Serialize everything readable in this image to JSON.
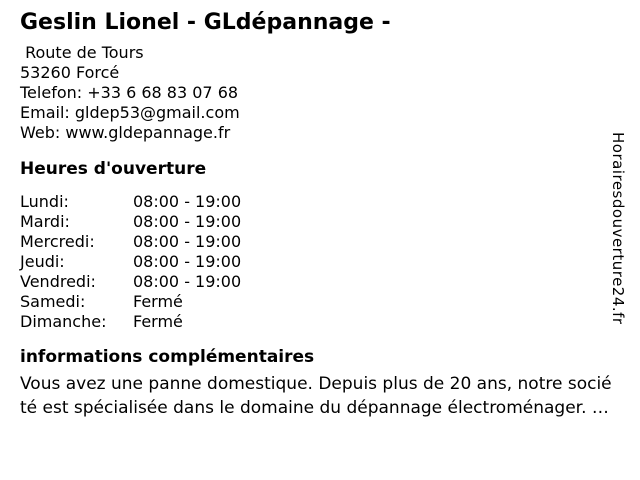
{
  "page": {
    "background_color": "#ffffff",
    "text_color": "#000000"
  },
  "header": {
    "title": "Geslin Lionel - GLdépannage -"
  },
  "contact": {
    "street": " Route de Tours",
    "city": "53260 Forcé",
    "phone_label": "Telefon:",
    "phone": "+33 6 68 83 07 68",
    "email_label": "Email:",
    "email": "gldep53@gmail.com",
    "web_label": "Web:",
    "website": "www.gldepannage.fr"
  },
  "opening_hours": {
    "heading": "Heures d'ouverture",
    "rows": [
      {
        "day": "Lundi:",
        "hours": "08:00 - 19:00"
      },
      {
        "day": "Mardi:",
        "hours": "08:00 - 19:00"
      },
      {
        "day": "Mercredi:",
        "hours": "08:00 - 19:00"
      },
      {
        "day": "Jeudi:",
        "hours": "08:00 - 19:00"
      },
      {
        "day": "Vendredi:",
        "hours": "08:00 - 19:00"
      },
      {
        "day": "Samedi:",
        "hours": "Fermé"
      },
      {
        "day": "Dimanche:",
        "hours": "Fermé"
      }
    ]
  },
  "additional_info": {
    "heading": "informations complémentaires",
    "text": "Vous avez une panne domestique. Depuis plus de 20 ans, notre socié\nté est spécialisée dans le domaine du dépannage électroménager. …"
  },
  "watermark": {
    "text": "Horairesdouverture24.fr"
  }
}
